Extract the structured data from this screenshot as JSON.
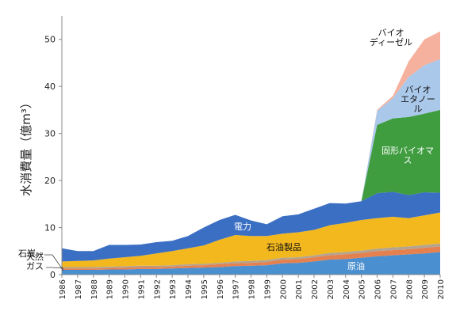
{
  "chart_data": {
    "type": "stacked_area",
    "y_label": "水消費量（億m³）",
    "x": [
      "1986",
      "1987",
      "1988",
      "1989",
      "1990",
      "1991",
      "1992",
      "1993",
      "1994",
      "1995",
      "1996",
      "1997",
      "1998",
      "1999",
      "2000",
      "2001",
      "2002",
      "2003",
      "2004",
      "2005",
      "2006",
      "2007",
      "2008",
      "2009",
      "2010"
    ],
    "ylim": [
      0,
      55
    ],
    "yticks": [
      0,
      10,
      20,
      30,
      40,
      50
    ],
    "series": [
      {
        "name": "原油",
        "color": "#4a8fcf",
        "values": [
          1.0,
          1.0,
          1.0,
          1.1,
          1.1,
          1.2,
          1.2,
          1.3,
          1.4,
          1.5,
          1.6,
          1.8,
          1.9,
          2.0,
          2.4,
          2.5,
          2.8,
          3.2,
          3.3,
          3.6,
          3.9,
          4.1,
          4.3,
          4.5,
          4.8
        ]
      },
      {
        "name": "天然\nガス",
        "color": "#e5804f",
        "values": [
          0.3,
          0.3,
          0.3,
          0.3,
          0.4,
          0.4,
          0.4,
          0.4,
          0.5,
          0.5,
          0.6,
          0.6,
          0.6,
          0.7,
          0.8,
          0.8,
          0.9,
          0.9,
          1.0,
          1.0,
          1.1,
          1.1,
          1.1,
          1.2,
          1.2
        ]
      },
      {
        "name": "石炭",
        "color": "#b3a38f",
        "values": [
          0.3,
          0.3,
          0.3,
          0.3,
          0.3,
          0.3,
          0.3,
          0.3,
          0.3,
          0.3,
          0.3,
          0.4,
          0.4,
          0.4,
          0.4,
          0.4,
          0.4,
          0.5,
          0.5,
          0.5,
          0.5,
          0.6,
          0.6,
          0.6,
          0.6
        ]
      },
      {
        "name": "石油製品",
        "color": "#f2b81e",
        "values": [
          1.2,
          1.3,
          1.4,
          1.7,
          1.9,
          2.1,
          2.6,
          3.0,
          3.4,
          3.9,
          4.9,
          5.6,
          5.3,
          5.1,
          5.1,
          5.3,
          5.4,
          5.9,
          6.2,
          6.5,
          6.5,
          6.5,
          6.0,
          6.3,
          6.6
        ]
      },
      {
        "name": "電力",
        "color": "#3b6fc4",
        "values": [
          2.8,
          2.1,
          2.0,
          2.9,
          2.6,
          2.4,
          2.4,
          2.2,
          2.6,
          3.8,
          4.2,
          4.3,
          3.3,
          2.5,
          3.7,
          3.8,
          4.5,
          4.7,
          4.1,
          4.0,
          5.3,
          5.3,
          4.9,
          4.9,
          4.2
        ]
      },
      {
        "name": "固形バイオマス",
        "color": "#3f9c3f",
        "values": [
          0,
          0,
          0,
          0,
          0,
          0,
          0,
          0,
          0,
          0,
          0,
          0,
          0,
          0,
          0,
          0,
          0,
          0,
          0,
          0,
          14.5,
          15.6,
          16.6,
          16.7,
          17.6
        ]
      },
      {
        "name": "バイオ\nエタノール",
        "color": "#aac8ea",
        "values": [
          0,
          0,
          0,
          0,
          0,
          0,
          0,
          0,
          0,
          0,
          0,
          0,
          0,
          0,
          0,
          0,
          0,
          0,
          0,
          0,
          3.0,
          4.3,
          8.5,
          10.3,
          10.8
        ]
      },
      {
        "name": "バイオ\nディーゼル",
        "color": "#f5b19d",
        "values": [
          0,
          0,
          0,
          0,
          0,
          0,
          0,
          0,
          0,
          0,
          0,
          0,
          0,
          0,
          0,
          0,
          0,
          0,
          0,
          0,
          0.2,
          0.5,
          3.3,
          5.5,
          5.9
        ]
      }
    ]
  }
}
